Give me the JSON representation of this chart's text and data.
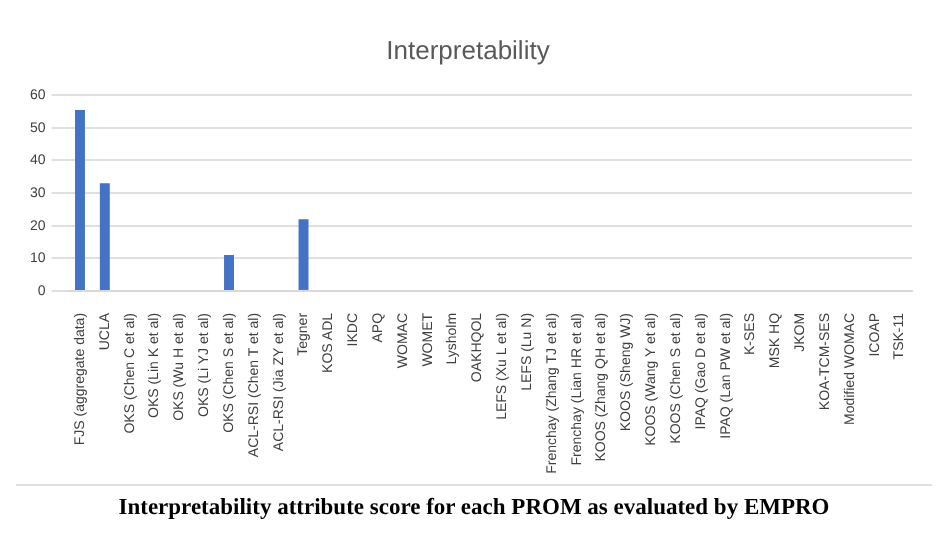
{
  "chart_data": {
    "type": "bar",
    "title": "Interpretability",
    "categories": [
      "FJS (aggregate data)",
      "UCLA",
      "OKS (Chen C et al)",
      "OKS (Lin K et al)",
      "OKS (Wu H et al)",
      "OKS (Li YJ et al)",
      "OKS (Chen S et al)",
      "ACL-RSI (Chen T et al)",
      "ACL-RSI (Jia ZY et al)",
      "Tegner",
      "KOS ADL",
      "IKDC",
      "APQ",
      "WOMAC",
      "WOMET",
      "Lysholm",
      "OAKHQOL",
      "LEFS (Xu L et al)",
      "LEFS (Lu N)",
      "Frenchay (Zhang TJ et al)",
      "Frenchay (Lian HR et al)",
      "KOOS (Zhang QH et al)",
      "KOOS (Sheng WJ)",
      "KOOS (Wang Y et al)",
      "KOOS (Chen S et al)",
      "IPAQ (Gao D et al)",
      "IPAQ (Lan PW et al)",
      "K-SES",
      "MSK HQ",
      "JKOM",
      "KOA-TCM-SES",
      "Modified WOMAC",
      "ICOAP",
      "TSK-11"
    ],
    "values": [
      55.5,
      33,
      0,
      0,
      0,
      0,
      11,
      0,
      0,
      22,
      0,
      0,
      0,
      0,
      0,
      0,
      0,
      0,
      0,
      0,
      0,
      0,
      0,
      0,
      0,
      0,
      0,
      0,
      0,
      0,
      0,
      0,
      0,
      0
    ],
    "color": "#4472c4",
    "ylim": [
      0,
      60
    ],
    "yticks": [
      0,
      10,
      20,
      30,
      40,
      50,
      60
    ],
    "grid": "y",
    "annotations": [
      "Interpretability attribute score for each PROM as evaluated by EMPRO"
    ]
  }
}
